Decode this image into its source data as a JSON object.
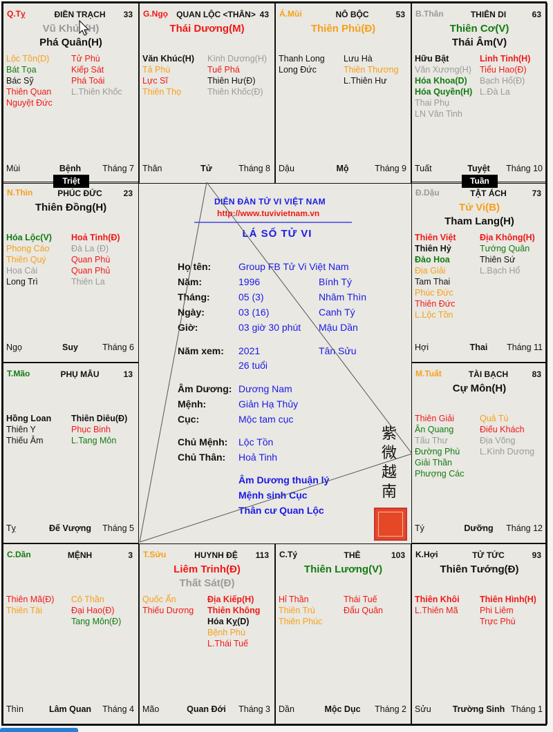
{
  "colors": {
    "r": "#f01818",
    "o": "#f6a01a",
    "g": "#137a13",
    "gr": "#9a9a9a",
    "k": "#111111",
    "blue": "#1a1ae6"
  },
  "markers": {
    "triet": "Triệt",
    "tuan": "Tuần"
  },
  "cells": [
    {
      "canchi": "Q.Tỵ",
      "canchi_color": "r",
      "palace": "ĐIỀN TRẠCH",
      "age": "33",
      "majors": [
        {
          "t": "Vũ Khúc(H)",
          "c": "gr"
        },
        {
          "t": "Phá Quân(H)",
          "c": "k"
        }
      ],
      "left": [
        {
          "t": "Lộc Tồn(D)",
          "c": "o"
        },
        {
          "t": "Bát Tọa",
          "c": "g"
        },
        {
          "t": "Bác Sỹ",
          "c": "k"
        },
        {
          "t": "Thiên Quan",
          "c": "r"
        },
        {
          "t": "Nguyệt Đức",
          "c": "r"
        }
      ],
      "right": [
        {
          "t": "Tử Phù",
          "c": "r"
        },
        {
          "t": "Kiếp Sát",
          "c": "r"
        },
        {
          "t": "Phá Toái",
          "c": "r"
        },
        {
          "t": "L.Thiên Khốc",
          "c": "gr"
        }
      ],
      "branch": "Mùi",
      "stage": "Bệnh",
      "month": "Tháng 7"
    },
    {
      "canchi": "G.Ngọ",
      "canchi_color": "r",
      "palace": "QUAN LỘC <THÂN>",
      "age": "43",
      "majors": [
        {
          "t": "Thái Dương(M)",
          "c": "r"
        }
      ],
      "left": [
        {
          "t": "Văn Khúc(H)",
          "c": "k",
          "b": 1
        },
        {
          "t": "Tả Phù",
          "c": "o"
        },
        {
          "t": "Lực Sĩ",
          "c": "r"
        },
        {
          "t": "Thiên Thọ",
          "c": "o"
        }
      ],
      "right": [
        {
          "t": "Kình Dương(H)",
          "c": "gr"
        },
        {
          "t": "Tuế Phá",
          "c": "r"
        },
        {
          "t": "Thiên Hư(Đ)",
          "c": "k"
        },
        {
          "t": "Thiên Khốc(Đ)",
          "c": "gr"
        }
      ],
      "branch": "Thân",
      "stage": "Tử",
      "month": "Tháng 8"
    },
    {
      "canchi": "Á.Mùi",
      "canchi_color": "o",
      "palace": "NÔ BỘC",
      "age": "53",
      "majors": [
        {
          "t": "Thiên Phủ(Đ)",
          "c": "o"
        }
      ],
      "left": [
        {
          "t": "Thanh Long",
          "c": "k"
        },
        {
          "t": "Long Đức",
          "c": "k"
        }
      ],
      "right": [
        {
          "t": "Lưu Hà",
          "c": "k"
        },
        {
          "t": "Thiên Thương",
          "c": "o"
        },
        {
          "t": "L.Thiên Hư",
          "c": "k"
        }
      ],
      "branch": "Dậu",
      "stage": "Mộ",
      "month": "Tháng 9"
    },
    {
      "canchi": "B.Thân",
      "canchi_color": "gr",
      "palace": "THIÊN DI",
      "age": "63",
      "majors": [
        {
          "t": "Thiên Cơ(V)",
          "c": "g"
        },
        {
          "t": "Thái Âm(V)",
          "c": "k"
        }
      ],
      "left": [
        {
          "t": "Hữu Bật",
          "c": "k",
          "b": 1
        },
        {
          "t": "Văn Xương(H)",
          "c": "gr"
        },
        {
          "t": "Hóa Khoa(D)",
          "c": "g",
          "b": 1
        },
        {
          "t": "Hóa Quyền(H)",
          "c": "g",
          "b": 1
        },
        {
          "t": "Thai Phụ",
          "c": "gr"
        },
        {
          "t": "LN Văn Tinh",
          "c": "gr"
        }
      ],
      "right": [
        {
          "t": "Linh Tinh(H)",
          "c": "r",
          "b": 1
        },
        {
          "t": "Tiểu Hao(Đ)",
          "c": "r"
        },
        {
          "t": "Bạch Hổ(Đ)",
          "c": "gr"
        },
        {
          "t": "L.Đà La",
          "c": "gr"
        }
      ],
      "branch": "Tuất",
      "stage": "Tuyệt",
      "month": "Tháng 10"
    },
    {
      "canchi": "N.Thìn",
      "canchi_color": "o",
      "palace": "PHÚC ĐỨC",
      "age": "23",
      "majors": [
        {
          "t": "Thiên Đồng(H)",
          "c": "k"
        }
      ],
      "left": [
        {
          "t": "Hóa Lộc(V)",
          "c": "g",
          "b": 1
        },
        {
          "t": "Phong Cáo",
          "c": "o"
        },
        {
          "t": "Thiên Quý",
          "c": "o"
        },
        {
          "t": "Hoa Cái",
          "c": "gr"
        },
        {
          "t": "Long Trì",
          "c": "k"
        }
      ],
      "right": [
        {
          "t": "Hoả Tinh(Đ)",
          "c": "r",
          "b": 1
        },
        {
          "t": "Đà La (Đ)",
          "c": "gr"
        },
        {
          "t": "Quan Phù",
          "c": "r"
        },
        {
          "t": "Quan Phủ",
          "c": "r"
        },
        {
          "t": "Thiên La",
          "c": "gr"
        }
      ],
      "branch": "Ngọ",
      "stage": "Suy",
      "month": "Tháng 6"
    },
    {
      "canchi": "Đ.Dậu",
      "canchi_color": "gr",
      "palace": "TẬT ÁCH",
      "age": "73",
      "majors": [
        {
          "t": "Tử Vi(B)",
          "c": "o"
        },
        {
          "t": "Tham Lang(H)",
          "c": "k"
        }
      ],
      "left": [
        {
          "t": "Thiên Việt",
          "c": "r",
          "b": 1
        },
        {
          "t": "Thiên Hỷ",
          "c": "k",
          "b": 1
        },
        {
          "t": "Đào Hoa",
          "c": "g",
          "b": 1
        },
        {
          "t": "Địa Giải",
          "c": "o"
        },
        {
          "t": "Tam Thai",
          "c": "k"
        },
        {
          "t": "Phúc Đức",
          "c": "o"
        },
        {
          "t": "Thiên Đức",
          "c": "r"
        },
        {
          "t": "L.Lộc Tồn",
          "c": "o"
        }
      ],
      "right": [
        {
          "t": "Địa Không(H)",
          "c": "r",
          "b": 1
        },
        {
          "t": "Tướng Quân",
          "c": "g"
        },
        {
          "t": "Thiên Sứ",
          "c": "k"
        },
        {
          "t": "L.Bạch Hổ",
          "c": "gr"
        }
      ],
      "branch": "Hợi",
      "stage": "Thai",
      "month": "Tháng 11"
    },
    {
      "canchi": "T.Mão",
      "canchi_color": "g",
      "palace": "PHỤ MẪU",
      "age": "13",
      "majors": [],
      "left": [
        {
          "t": "Hồng Loan",
          "c": "k",
          "b": 1
        },
        {
          "t": "Thiên Y",
          "c": "k"
        },
        {
          "t": "Thiếu Âm",
          "c": "k"
        }
      ],
      "right": [
        {
          "t": "Thiên Diêu(Đ)",
          "c": "k",
          "b": 1
        },
        {
          "t": "Phục Binh",
          "c": "r"
        },
        {
          "t": "L.Tang Môn",
          "c": "g"
        }
      ],
      "branch": "Tỵ",
      "stage": "Đế Vượng",
      "month": "Tháng 5"
    },
    {
      "canchi": "M.Tuất",
      "canchi_color": "o",
      "palace": "TÀI BẠCH",
      "age": "83",
      "majors": [
        {
          "t": "Cự Môn(H)",
          "c": "k"
        }
      ],
      "left": [
        {
          "t": "Thiên Giải",
          "c": "r"
        },
        {
          "t": "Ân Quang",
          "c": "g"
        },
        {
          "t": "Tấu Thư",
          "c": "gr"
        },
        {
          "t": "Đường Phù",
          "c": "g"
        },
        {
          "t": "Giải Thần",
          "c": "g"
        },
        {
          "t": "Phượng Các",
          "c": "g"
        }
      ],
      "right": [
        {
          "t": "Quả Tú",
          "c": "o"
        },
        {
          "t": "Điếu Khách",
          "c": "r"
        },
        {
          "t": "Địa Võng",
          "c": "gr"
        },
        {
          "t": "L.Kình Dương",
          "c": "gr"
        }
      ],
      "branch": "Tý",
      "stage": "Dưỡng",
      "month": "Tháng 12"
    },
    {
      "canchi": "C.Dần",
      "canchi_color": "g",
      "palace": "MỆNH",
      "age": "3",
      "majors": [],
      "left": [
        {
          "t": "Thiên Mã(Đ)",
          "c": "r"
        },
        {
          "t": "Thiên Tài",
          "c": "o"
        }
      ],
      "right": [
        {
          "t": "Cô Thần",
          "c": "o"
        },
        {
          "t": "Đại Hao(Đ)",
          "c": "r"
        },
        {
          "t": "Tang Môn(Đ)",
          "c": "g"
        }
      ],
      "branch": "Thìn",
      "stage": "Lâm Quan",
      "month": "Tháng 4"
    },
    {
      "canchi": "T.Sửu",
      "canchi_color": "o",
      "palace": "HUYNH ĐỆ",
      "age": "113",
      "majors": [
        {
          "t": "Liêm Trinh(Đ)",
          "c": "r"
        },
        {
          "t": "Thất Sát(Đ)",
          "c": "gr"
        }
      ],
      "left": [
        {
          "t": "Quốc Ấn",
          "c": "o"
        },
        {
          "t": "Thiếu Dương",
          "c": "r"
        }
      ],
      "right": [
        {
          "t": "Địa Kiếp(H)",
          "c": "r",
          "b": 1
        },
        {
          "t": "Thiên Không",
          "c": "r",
          "b": 1
        },
        {
          "t": "Hóa Kỵ(D)",
          "c": "k",
          "b": 1
        },
        {
          "t": "Bệnh Phù",
          "c": "o"
        },
        {
          "t": "L.Thái Tuế",
          "c": "r"
        }
      ],
      "branch": "Mão",
      "stage": "Quan Đới",
      "month": "Tháng 3"
    },
    {
      "canchi": "C.Tý",
      "canchi_color": "k",
      "palace": "THÊ",
      "age": "103",
      "majors": [
        {
          "t": "Thiên Lương(V)",
          "c": "g"
        }
      ],
      "left": [
        {
          "t": "Hỉ Thần",
          "c": "r"
        },
        {
          "t": "Thiên Trù",
          "c": "o"
        },
        {
          "t": "Thiên Phúc",
          "c": "o"
        }
      ],
      "right": [
        {
          "t": "Thái Tuế",
          "c": "r"
        },
        {
          "t": "Đẩu Quân",
          "c": "r"
        }
      ],
      "branch": "Dần",
      "stage": "Mộc Dục",
      "month": "Tháng 2"
    },
    {
      "canchi": "K.Hợi",
      "canchi_color": "k",
      "palace": "TỬ TỨC",
      "age": "93",
      "majors": [
        {
          "t": "Thiên Tướng(Đ)",
          "c": "k"
        }
      ],
      "left": [
        {
          "t": "Thiên Khôi",
          "c": "r",
          "b": 1
        },
        {
          "t": "L.Thiên Mã",
          "c": "r"
        }
      ],
      "right": [
        {
          "t": "Thiên Hình(H)",
          "c": "r",
          "b": 1
        },
        {
          "t": "Phi Liêm",
          "c": "r"
        },
        {
          "t": "Trực Phù",
          "c": "r"
        }
      ],
      "branch": "Sửu",
      "stage": "Trường Sinh",
      "month": "Tháng 1"
    }
  ],
  "center": {
    "forum": "DIỄN ĐÀN TỬ VI VIỆT NAM",
    "url": "http://www.tuvivietnam.vn",
    "title": "LÁ SỐ TỬ VI",
    "rows": [
      {
        "label": "Họ tên:",
        "value": "Group FB Tử Vi Việt Nam",
        "extra": ""
      },
      {
        "label": "Năm:",
        "value": "1996",
        "extra": "Bính Tý"
      },
      {
        "label": "Tháng:",
        "value": "05 (3)",
        "extra": "Nhâm Thìn"
      },
      {
        "label": "Ngày:",
        "value": "03 (16)",
        "extra": "Canh Tý"
      },
      {
        "label": "Giờ:",
        "value": "03 giờ 30 phút",
        "extra": "Mậu Dần"
      },
      {
        "label": "Năm xem:",
        "value": "2021",
        "extra": "Tân Sửu"
      },
      {
        "label": "",
        "value": "26 tuổi",
        "extra": ""
      },
      {
        "label": "Âm Dương:",
        "value": "Dương Nam",
        "extra": ""
      },
      {
        "label": "Mệnh:",
        "value": "Giản Hạ Thủy",
        "extra": ""
      },
      {
        "label": "Cục:",
        "value": "Mộc tam cục",
        "extra": ""
      },
      {
        "label": "Chủ Mệnh:",
        "value": "Lộc Tồn",
        "extra": ""
      },
      {
        "label": "Chủ Thân:",
        "value": "Hoả Tinh",
        "extra": ""
      }
    ],
    "notes": [
      "Âm Dương thuận lý",
      "Mệnh sinh Cục",
      "Thân cư Quan Lộc"
    ],
    "calligraphy": "紫微越南"
  }
}
